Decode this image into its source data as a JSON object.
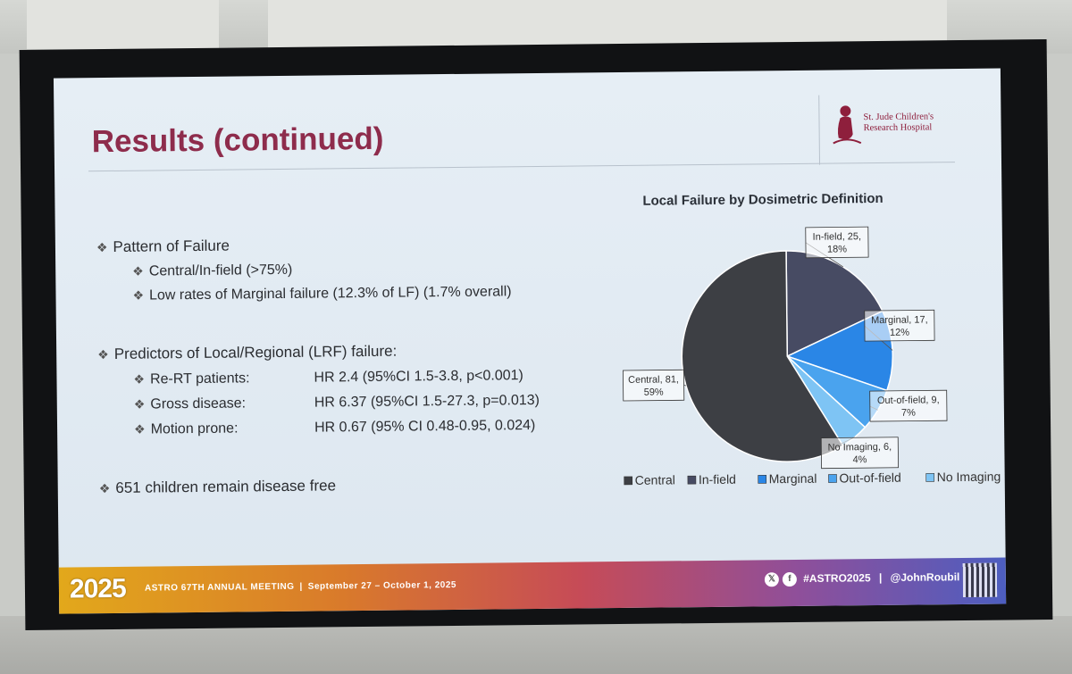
{
  "slide": {
    "title": "Results (continued)",
    "logo": {
      "line1": "St. Jude Children's",
      "line2": "Research Hospital"
    },
    "bullets": {
      "pattern_heading": "Pattern of Failure",
      "pattern_items": [
        "Central/In-field (>75%)",
        "Low rates of Marginal failure (12.3% of LF)  (1.7% overall)"
      ],
      "predictors_heading": "Predictors of Local/Regional (LRF) failure:",
      "predictors": [
        {
          "label": "Re-RT patients:",
          "value": "HR 2.4 (95%CI 1.5-3.8, p<0.001)"
        },
        {
          "label": "Gross disease:",
          "value": "HR 6.37 (95%CI 1.5-27.3, p=0.013)"
        },
        {
          "label": "Motion prone:",
          "value": "HR 0.67 (95% CI 0.48-0.95, 0.024)"
        }
      ],
      "disease_free": "651 children remain disease free"
    },
    "footer": {
      "year": "2025",
      "meeting": "ASTRO 67TH ANNUAL MEETING",
      "dates": "September 27 – October 1, 2025",
      "hashtag": "#ASTRO2025",
      "handle": "@JohnRoubil"
    }
  },
  "chart_data": {
    "type": "pie",
    "title": "Local Failure by Dosimetric Definition",
    "categories": [
      "In-field",
      "Marginal",
      "Out-of-field",
      "No Imaging",
      "Central"
    ],
    "values": [
      25,
      17,
      9,
      6,
      81
    ],
    "percents": [
      "18%",
      "12%",
      "7%",
      "4%",
      "59%"
    ],
    "labels": [
      "In-field, 25,",
      "Marginal, 17,",
      "Out-of-field, 9,",
      "No Imaging, 6,",
      "Central, 81,"
    ],
    "colors": [
      "#474b63",
      "#2a86e6",
      "#4aa3ee",
      "#7ec4f4",
      "#3d3f44"
    ],
    "legend": [
      "Central",
      "In-field",
      "Marginal",
      "Out-of-field",
      "No Imaging"
    ],
    "legend_colors": [
      "#3d3f44",
      "#474b63",
      "#2a86e6",
      "#4aa3ee",
      "#7ec4f4"
    ],
    "legend_position": "bottom"
  }
}
